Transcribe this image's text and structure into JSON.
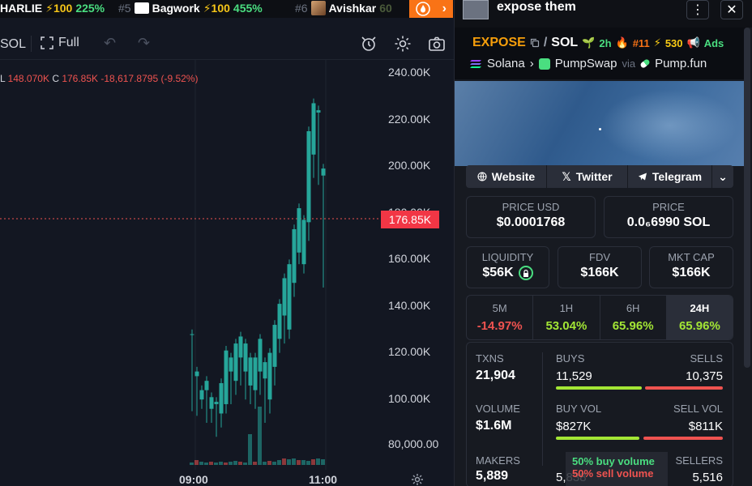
{
  "ticker": [
    {
      "rank": "",
      "name": "HARLIE",
      "points": "⚡100",
      "pct": "225%"
    },
    {
      "rank": "#5",
      "name": "Bagwork",
      "points": "⚡100",
      "pct": "455%"
    },
    {
      "rank": "#6",
      "name": "Avishkar",
      "points": "",
      "pct": "60"
    }
  ],
  "toolbar": {
    "pair_suffix": "SOL",
    "full_label": "Full"
  },
  "ohlc": {
    "l_label": "L",
    "l_val": "148.070K",
    "c_label": "C",
    "c_val": "176.85K",
    "change": "-18,617.8795 (-9.52%)"
  },
  "price_axis": [
    "240.00K",
    "220.00K",
    "200.00K",
    "180.00K",
    "160.00K",
    "140.00K",
    "120.00K",
    "100.00K",
    "80,000.00"
  ],
  "last_price": "176.85K",
  "time_axis": [
    "09:00",
    "11:00"
  ],
  "panel": {
    "title": "expose them",
    "symbol": "EXPOSE",
    "quote": "SOL",
    "age": "2h",
    "rank": "#11",
    "boosts": "530",
    "ads": "Ads",
    "chain": "Solana",
    "dex": "PumpSwap",
    "via_label": "via",
    "launchpad": "Pump.fun",
    "social": {
      "website": "Website",
      "twitter": "Twitter",
      "telegram": "Telegram"
    },
    "price_usd_label": "PRICE USD",
    "price_usd": "$0.0001768",
    "price_label": "PRICE",
    "price_sol": "0.0₆6990 SOL",
    "liquidity_label": "LIQUIDITY",
    "liquidity": "$56K",
    "fdv_label": "FDV",
    "fdv": "$166K",
    "mcap_label": "MKT CAP",
    "mcap": "$166K",
    "periods": [
      {
        "label": "5M",
        "value": "-14.97%"
      },
      {
        "label": "1H",
        "value": "53.04%"
      },
      {
        "label": "6H",
        "value": "65.96%"
      },
      {
        "label": "24H",
        "value": "65.96%"
      }
    ],
    "stats": {
      "txns_label": "TXNS",
      "txns": "21,904",
      "buys_label": "BUYS",
      "buys": "11,529",
      "sells_label": "SELLS",
      "sells": "10,375",
      "volume_label": "VOLUME",
      "volume": "$1.6M",
      "buyvol_label": "BUY VOL",
      "buyvol": "$827K",
      "sellvol_label": "SELL VOL",
      "sellvol": "$811K",
      "makers_label": "MAKERS",
      "makers": "5,889",
      "buyers": "5,838",
      "sellers_label": "SELLERS",
      "sellers": "5,516"
    },
    "tooltip": {
      "buy": "50% buy volume",
      "sell": "50% sell volume"
    }
  },
  "colors": {
    "up": "#26a69a",
    "down": "#ef5350",
    "accent": "#f97316"
  }
}
